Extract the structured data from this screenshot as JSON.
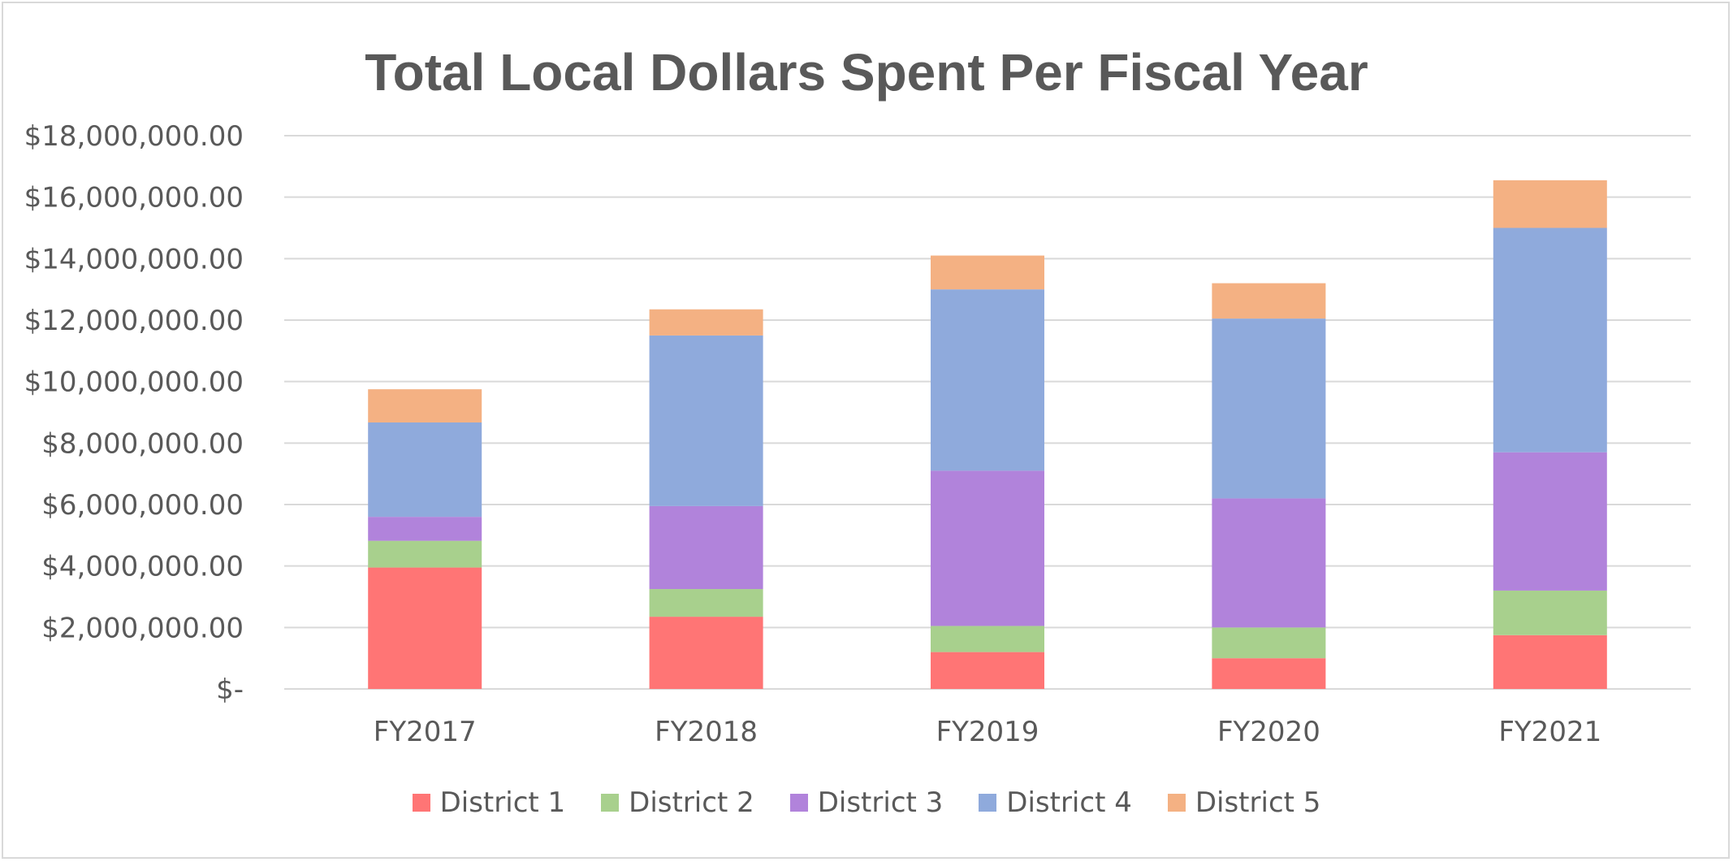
{
  "chart_data": {
    "type": "bar",
    "stacked": true,
    "title": "Total Local Dollars Spent Per Fiscal Year",
    "xlabel": "",
    "ylabel": "",
    "categories": [
      "FY2017",
      "FY2018",
      "FY2019",
      "FY2020",
      "FY2021"
    ],
    "ylim": [
      0,
      18000000
    ],
    "yticks": [
      0,
      2000000,
      4000000,
      6000000,
      8000000,
      10000000,
      12000000,
      14000000,
      16000000,
      18000000
    ],
    "ytick_labels": [
      "$-",
      "$2,000,000.00",
      "$4,000,000.00",
      "$6,000,000.00",
      "$8,000,000.00",
      "$10,000,000.00",
      "$12,000,000.00",
      "$14,000,000.00",
      "$16,000,000.00",
      "$18,000,000.00"
    ],
    "grid": true,
    "legend_position": "bottom",
    "series": [
      {
        "name": "District 1",
        "color": "#ff7575",
        "values": [
          3950000,
          2350000,
          1200000,
          1000000,
          1750000
        ]
      },
      {
        "name": "District 2",
        "color": "#a8d08d",
        "values": [
          870000,
          900000,
          850000,
          1000000,
          1450000
        ]
      },
      {
        "name": "District 3",
        "color": "#b183db",
        "values": [
          780000,
          2700000,
          5050000,
          4200000,
          4500000
        ]
      },
      {
        "name": "District 4",
        "color": "#8faadc",
        "values": [
          3070000,
          5550000,
          5900000,
          5850000,
          7300000
        ]
      },
      {
        "name": "District 5",
        "color": "#f4b183",
        "values": [
          1080000,
          850000,
          1100000,
          1150000,
          1550000
        ]
      }
    ]
  }
}
